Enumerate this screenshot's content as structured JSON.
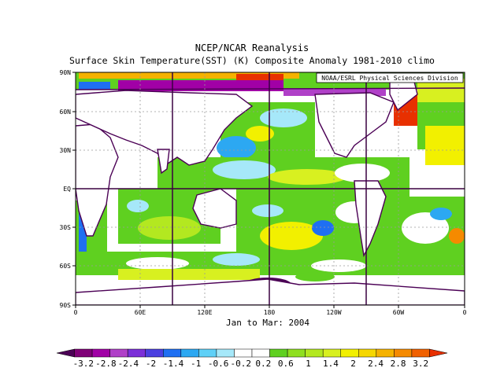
{
  "titles": {
    "line1": "NCEP/NCAR Reanalysis",
    "line2": "Surface Skin Temperature(SST) (K) Composite Anomaly 1981-2010 climo",
    "credit": "NOAA/ESRL Physical Sciences Division",
    "period": "Jan to Mar: 2004"
  },
  "map": {
    "lat_ticks": [
      "90N",
      "60N",
      "30N",
      "EQ",
      "30S",
      "60S",
      "90S"
    ],
    "lon_ticks": [
      "0",
      "60E",
      "120E",
      "180",
      "120W",
      "60W",
      "0"
    ]
  },
  "colorbar": {
    "labels": [
      "-3.2",
      "-2.8",
      "-2.4",
      "-2",
      "-1.4",
      "-1",
      "-0.6",
      "-0.2",
      "0.2",
      "0.6",
      "1",
      "1.4",
      "2",
      "2.4",
      "2.8",
      "3.2"
    ],
    "colors": [
      "#4b0055",
      "#7f0077",
      "#a100a6",
      "#b040c8",
      "#7b2fd8",
      "#4b3fe0",
      "#1f6ff2",
      "#2ca8f2",
      "#5fd0f7",
      "#a6e8f9",
      "#ffffff",
      "#ffffff",
      "#5fd020",
      "#8fdf20",
      "#b3e820",
      "#d8f020",
      "#f2f000",
      "#f6d700",
      "#f5b200",
      "#f58a00",
      "#f06000",
      "#e83000"
    ]
  }
}
